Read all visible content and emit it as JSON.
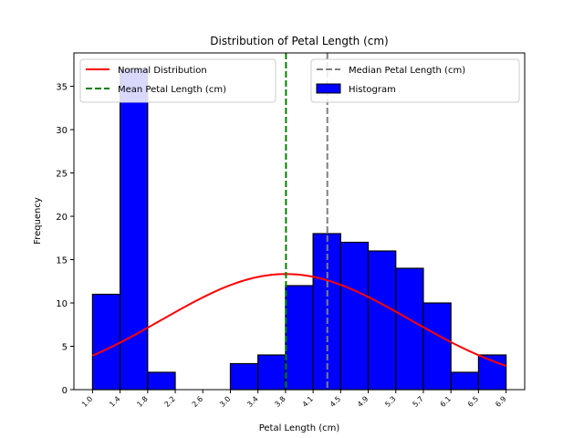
{
  "chart_data": {
    "type": "bar",
    "title": "Distribution of Petal Length (cm)",
    "xlabel": "Petal Length (cm)",
    "ylabel": "Frequency",
    "x_tick_labels": [
      "1.0",
      "1.4",
      "1.8",
      "2.2",
      "2.6",
      "3.0",
      "3.4",
      "3.8",
      "4.1",
      "4.5",
      "4.9",
      "5.3",
      "5.7",
      "6.1",
      "6.5",
      "6.9"
    ],
    "y_ticks": [
      0,
      5,
      10,
      15,
      20,
      25,
      30,
      35
    ],
    "ylim": [
      0,
      38.85
    ],
    "bins": {
      "left_edges": [
        1.0,
        1.3933,
        1.7867,
        2.18,
        2.5733,
        2.9667,
        3.36,
        3.7533,
        4.1467,
        4.54,
        4.9333,
        5.3267,
        5.72,
        6.1133,
        6.5067
      ],
      "bin_width": 0.3933,
      "xlim": [
        1.0,
        6.9
      ]
    },
    "series": [
      {
        "name": "Histogram",
        "kind": "histogram",
        "values": [
          11,
          37,
          2,
          0,
          0,
          3,
          4,
          12,
          18,
          17,
          16,
          14,
          10,
          2,
          4
        ],
        "color": "#0000ff",
        "edge_color": "#000000"
      },
      {
        "name": "Normal Distribution",
        "kind": "line",
        "mean": 3.76,
        "std": 1.765,
        "peak": 13.34,
        "color": "#ff0000"
      },
      {
        "name": "Mean Petal Length (cm)",
        "kind": "vline",
        "x": 3.76,
        "color": "#008000",
        "style": "dashed"
      },
      {
        "name": "Median Petal Length (cm)",
        "kind": "vline",
        "x": 4.35,
        "color": "#808080",
        "style": "dashed"
      }
    ],
    "legends": [
      {
        "placement": "top-left",
        "entries": [
          {
            "label": "Normal Distribution",
            "marker": "line",
            "color": "#ff0000"
          },
          {
            "label": "Mean Petal Length (cm)",
            "marker": "dashed",
            "color": "#008000"
          }
        ]
      },
      {
        "placement": "top-right",
        "entries": [
          {
            "label": "Median Petal Length (cm)",
            "marker": "dashed",
            "color": "#808080"
          },
          {
            "label": "Histogram",
            "marker": "patch",
            "color": "#0000ff"
          }
        ]
      }
    ],
    "grid": false
  }
}
